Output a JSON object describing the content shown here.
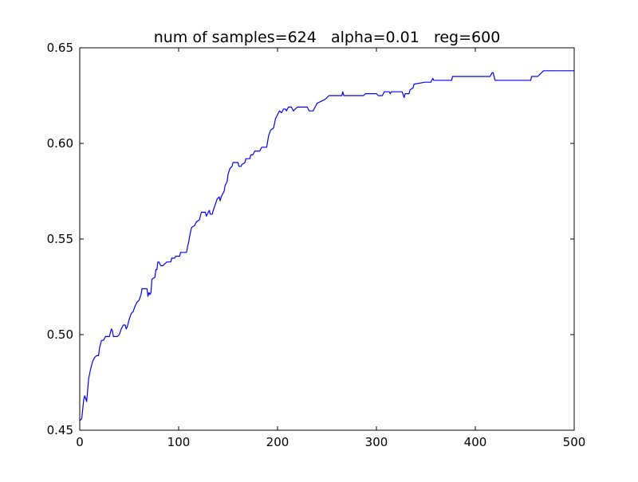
{
  "chart_data": {
    "type": "line",
    "title": "num of samples=624   alpha=0.01   reg=600",
    "xlabel": "",
    "ylabel": "",
    "xlim": [
      0,
      500
    ],
    "ylim": [
      0.45,
      0.65
    ],
    "x_ticks": [
      0,
      100,
      200,
      300,
      400,
      500
    ],
    "y_ticks": [
      0.45,
      0.5,
      0.55,
      0.6,
      0.65
    ],
    "x_tick_labels": [
      "0",
      "100",
      "200",
      "300",
      "400",
      "500"
    ],
    "y_tick_labels": [
      "0.45",
      "0.50",
      "0.55",
      "0.60",
      "0.65"
    ],
    "grid": false,
    "legend": "none",
    "series": [
      {
        "color": "#0000ff",
        "points": [
          [
            0,
            0.455
          ],
          [
            2,
            0.456
          ],
          [
            4,
            0.466
          ],
          [
            5,
            0.468
          ],
          [
            7,
            0.465
          ],
          [
            9,
            0.477
          ],
          [
            11,
            0.482
          ],
          [
            13,
            0.486
          ],
          [
            15,
            0.488
          ],
          [
            17,
            0.489
          ],
          [
            19,
            0.489
          ],
          [
            20,
            0.493
          ],
          [
            22,
            0.497
          ],
          [
            24,
            0.497
          ],
          [
            26,
            0.499
          ],
          [
            30,
            0.499
          ],
          [
            31,
            0.501
          ],
          [
            32,
            0.503
          ],
          [
            33,
            0.502
          ],
          [
            34,
            0.499
          ],
          [
            38,
            0.499
          ],
          [
            40,
            0.5
          ],
          [
            42,
            0.503
          ],
          [
            44,
            0.505
          ],
          [
            46,
            0.505
          ],
          [
            47,
            0.503
          ],
          [
            48,
            0.504
          ],
          [
            50,
            0.508
          ],
          [
            52,
            0.511
          ],
          [
            54,
            0.512
          ],
          [
            56,
            0.515
          ],
          [
            58,
            0.517
          ],
          [
            60,
            0.518
          ],
          [
            62,
            0.521
          ],
          [
            63,
            0.524
          ],
          [
            68,
            0.524
          ],
          [
            69,
            0.52
          ],
          [
            70,
            0.522
          ],
          [
            71,
            0.521
          ],
          [
            72,
            0.522
          ],
          [
            73,
            0.529
          ],
          [
            76,
            0.53
          ],
          [
            77,
            0.534
          ],
          [
            78,
            0.534
          ],
          [
            79,
            0.538
          ],
          [
            80,
            0.538
          ],
          [
            82,
            0.536
          ],
          [
            84,
            0.536
          ],
          [
            86,
            0.537
          ],
          [
            88,
            0.538
          ],
          [
            92,
            0.538
          ],
          [
            93,
            0.54
          ],
          [
            96,
            0.54
          ],
          [
            97,
            0.541
          ],
          [
            101,
            0.541
          ],
          [
            102,
            0.543
          ],
          [
            108,
            0.543
          ],
          [
            109,
            0.546
          ],
          [
            110,
            0.548
          ],
          [
            111,
            0.551
          ],
          [
            113,
            0.556
          ],
          [
            116,
            0.557
          ],
          [
            118,
            0.559
          ],
          [
            121,
            0.56
          ],
          [
            123,
            0.564
          ],
          [
            127,
            0.564
          ],
          [
            128,
            0.562
          ],
          [
            130,
            0.564
          ],
          [
            131,
            0.565
          ],
          [
            132,
            0.563
          ],
          [
            134,
            0.563
          ],
          [
            135,
            0.565
          ],
          [
            137,
            0.568
          ],
          [
            139,
            0.571
          ],
          [
            141,
            0.572
          ],
          [
            142,
            0.57
          ],
          [
            143,
            0.572
          ],
          [
            145,
            0.574
          ],
          [
            146,
            0.575
          ],
          [
            147,
            0.578
          ],
          [
            149,
            0.58
          ],
          [
            150,
            0.584
          ],
          [
            152,
            0.587
          ],
          [
            154,
            0.588
          ],
          [
            155,
            0.59
          ],
          [
            160,
            0.59
          ],
          [
            161,
            0.588
          ],
          [
            163,
            0.588
          ],
          [
            164,
            0.589
          ],
          [
            167,
            0.59
          ],
          [
            168,
            0.592
          ],
          [
            172,
            0.592
          ],
          [
            173,
            0.594
          ],
          [
            175,
            0.594
          ],
          [
            177,
            0.596
          ],
          [
            182,
            0.596
          ],
          [
            184,
            0.598
          ],
          [
            189,
            0.598
          ],
          [
            191,
            0.604
          ],
          [
            193,
            0.607
          ],
          [
            196,
            0.608
          ],
          [
            198,
            0.613
          ],
          [
            200,
            0.615
          ],
          [
            202,
            0.617
          ],
          [
            204,
            0.616
          ],
          [
            206,
            0.618
          ],
          [
            208,
            0.618
          ],
          [
            209,
            0.617
          ],
          [
            211,
            0.619
          ],
          [
            214,
            0.619
          ],
          [
            216,
            0.617
          ],
          [
            218,
            0.618
          ],
          [
            220,
            0.619
          ],
          [
            230,
            0.619
          ],
          [
            232,
            0.617
          ],
          [
            236,
            0.617
          ],
          [
            238,
            0.619
          ],
          [
            240,
            0.621
          ],
          [
            244,
            0.622
          ],
          [
            248,
            0.623
          ],
          [
            250,
            0.624
          ],
          [
            252,
            0.625
          ],
          [
            265,
            0.625
          ],
          [
            266,
            0.627
          ],
          [
            267,
            0.625
          ],
          [
            287,
            0.625
          ],
          [
            289,
            0.626
          ],
          [
            300,
            0.626
          ],
          [
            302,
            0.625
          ],
          [
            306,
            0.625
          ],
          [
            307,
            0.626
          ],
          [
            308,
            0.627
          ],
          [
            313,
            0.627
          ],
          [
            314,
            0.626
          ],
          [
            315,
            0.627
          ],
          [
            326,
            0.627
          ],
          [
            328,
            0.624
          ],
          [
            329,
            0.626
          ],
          [
            333,
            0.626
          ],
          [
            334,
            0.628
          ],
          [
            337,
            0.629
          ],
          [
            338,
            0.631
          ],
          [
            349,
            0.632
          ],
          [
            355,
            0.632
          ],
          [
            357,
            0.634
          ],
          [
            358,
            0.633
          ],
          [
            376,
            0.633
          ],
          [
            377,
            0.635
          ],
          [
            415,
            0.635
          ],
          [
            417,
            0.637
          ],
          [
            418,
            0.637
          ],
          [
            420,
            0.633
          ],
          [
            456,
            0.633
          ],
          [
            457,
            0.635
          ],
          [
            463,
            0.635
          ],
          [
            465,
            0.636
          ],
          [
            469,
            0.638
          ],
          [
            500,
            0.638
          ]
        ]
      }
    ]
  }
}
